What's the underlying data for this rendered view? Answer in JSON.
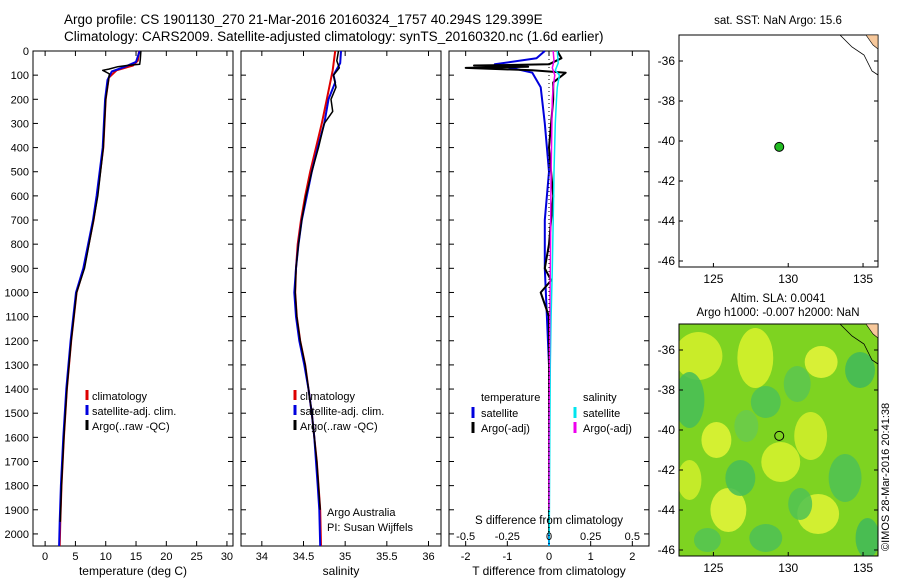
{
  "header": {
    "line1": "Argo profile: CS 1901130_270 21-Mar-2016 20160324_1757 40.294S 129.399E",
    "line2": "Climatology: CARS2009. Satellite-adjusted climatology: synTS_20160320.nc (1.6d earlier)"
  },
  "watermark": "©IMOS 28-Mar-2016 20:41:38",
  "colors": {
    "climatology": "#dd0000",
    "satellite": "#0000dd",
    "argo": "#000000",
    "sat_salinity": "#00e5ee",
    "argo_adj_salinity": "#ee00ee"
  },
  "chart_data": [
    {
      "id": "temperature",
      "type": "line",
      "xlabel": "temperature (deg C)",
      "xlim": [
        -2,
        31
      ],
      "ylim": [
        2050,
        0
      ],
      "x_ticks": [
        0,
        5,
        10,
        15,
        20,
        25,
        30
      ],
      "x_tick_labels": [
        "0",
        "5",
        "10",
        "15",
        "20",
        "25",
        "30"
      ],
      "y_ticks": [
        0,
        100,
        200,
        300,
        400,
        500,
        600,
        700,
        800,
        900,
        1000,
        1100,
        1200,
        1300,
        1400,
        1500,
        1600,
        1700,
        1800,
        1900,
        2000
      ],
      "legend": [
        "climatology",
        "satellite-adj. clim.",
        "Argo(..raw -QC)"
      ],
      "series": [
        {
          "name": "climatology",
          "color": "#dd0000",
          "width": 2,
          "points": [
            [
              15.5,
              0
            ],
            [
              15.3,
              40
            ],
            [
              14.5,
              60
            ],
            [
              11.8,
              80
            ],
            [
              10.5,
              110
            ],
            [
              10.0,
              200
            ],
            [
              9.6,
              400
            ],
            [
              8.6,
              600
            ],
            [
              8.0,
              700
            ],
            [
              6.4,
              900
            ],
            [
              5.2,
              1000
            ],
            [
              4.3,
              1200
            ],
            [
              3.6,
              1400
            ],
            [
              3.1,
              1600
            ],
            [
              2.7,
              1800
            ],
            [
              2.5,
              1950
            ],
            [
              2.4,
              2050
            ]
          ]
        },
        {
          "name": "satellite-adj. clim.",
          "color": "#0000dd",
          "width": 2,
          "points": [
            [
              15.6,
              0
            ],
            [
              15.0,
              45
            ],
            [
              13.2,
              65
            ],
            [
              11.0,
              85
            ],
            [
              10.3,
              120
            ],
            [
              9.9,
              200
            ],
            [
              9.5,
              400
            ],
            [
              8.5,
              600
            ],
            [
              7.9,
              700
            ],
            [
              6.3,
              900
            ],
            [
              5.1,
              1000
            ],
            [
              4.2,
              1200
            ],
            [
              3.5,
              1400
            ],
            [
              3.0,
              1600
            ],
            [
              2.6,
              1800
            ],
            [
              2.4,
              1950
            ],
            [
              2.3,
              2050
            ]
          ]
        },
        {
          "name": "Argo(..raw -QC)",
          "color": "#000000",
          "width": 1.5,
          "points": [
            [
              15.8,
              0
            ],
            [
              15.7,
              35
            ],
            [
              15.6,
              55
            ],
            [
              13.5,
              60
            ],
            [
              12.0,
              65
            ],
            [
              10.5,
              75
            ],
            [
              9.5,
              80
            ],
            [
              10.6,
              95
            ],
            [
              10.4,
              130
            ],
            [
              10.0,
              200
            ],
            [
              9.6,
              400
            ],
            [
              8.7,
              600
            ],
            [
              8.0,
              700
            ],
            [
              6.5,
              900
            ],
            [
              5.2,
              1000
            ],
            [
              4.3,
              1200
            ],
            [
              3.6,
              1400
            ],
            [
              3.1,
              1600
            ],
            [
              2.7,
              1800
            ],
            [
              2.5,
              1950
            ]
          ]
        }
      ]
    },
    {
      "id": "salinity",
      "type": "line",
      "xlabel": "salinity",
      "xlim": [
        33.75,
        36.15
      ],
      "ylim": [
        2050,
        0
      ],
      "x_ticks": [
        34,
        34.5,
        35,
        35.5,
        36
      ],
      "x_tick_labels": [
        "34",
        "34.5",
        "35",
        "35.5",
        "36"
      ],
      "legend": [
        "climatology",
        "satellite-adj. clim.",
        "Argo(..raw -QC)"
      ],
      "annotation": [
        "Argo Australia",
        "PI: Susan Wijffels"
      ],
      "series": [
        {
          "name": "climatology",
          "color": "#dd0000",
          "width": 2,
          "points": [
            [
              34.88,
              0
            ],
            [
              34.85,
              80
            ],
            [
              34.78,
              200
            ],
            [
              34.72,
              300
            ],
            [
              34.65,
              400
            ],
            [
              34.58,
              500
            ],
            [
              34.52,
              600
            ],
            [
              34.47,
              700
            ],
            [
              34.43,
              800
            ],
            [
              34.41,
              900
            ],
            [
              34.4,
              1000
            ],
            [
              34.42,
              1100
            ],
            [
              34.46,
              1200
            ],
            [
              34.52,
              1300
            ],
            [
              34.56,
              1400
            ],
            [
              34.6,
              1500
            ],
            [
              34.63,
              1600
            ],
            [
              34.66,
              1700
            ],
            [
              34.68,
              1800
            ],
            [
              34.7,
              1900
            ],
            [
              34.71,
              2050
            ]
          ]
        },
        {
          "name": "satellite-adj. clim.",
          "color": "#0000dd",
          "width": 2,
          "points": [
            [
              34.95,
              0
            ],
            [
              34.94,
              50
            ],
            [
              34.86,
              100
            ],
            [
              34.88,
              130
            ],
            [
              34.8,
              200
            ],
            [
              34.75,
              300
            ],
            [
              34.67,
              400
            ],
            [
              34.6,
              500
            ],
            [
              34.54,
              600
            ],
            [
              34.48,
              700
            ],
            [
              34.44,
              800
            ],
            [
              34.41,
              900
            ],
            [
              34.39,
              1000
            ],
            [
              34.41,
              1100
            ],
            [
              34.45,
              1200
            ],
            [
              34.51,
              1300
            ],
            [
              34.56,
              1400
            ],
            [
              34.6,
              1500
            ],
            [
              34.63,
              1600
            ],
            [
              34.65,
              1700
            ],
            [
              34.67,
              1800
            ],
            [
              34.69,
              1900
            ],
            [
              34.7,
              2050
            ]
          ]
        },
        {
          "name": "Argo(..raw -QC)",
          "color": "#000000",
          "width": 1.5,
          "points": [
            [
              34.92,
              0
            ],
            [
              34.9,
              40
            ],
            [
              34.93,
              70
            ],
            [
              34.86,
              100
            ],
            [
              34.89,
              150
            ],
            [
              34.83,
              200
            ],
            [
              34.85,
              250
            ],
            [
              34.75,
              300
            ],
            [
              34.68,
              400
            ],
            [
              34.6,
              500
            ],
            [
              34.53,
              600
            ],
            [
              34.48,
              700
            ],
            [
              34.44,
              800
            ],
            [
              34.41,
              900
            ],
            [
              34.4,
              1000
            ],
            [
              34.42,
              1100
            ],
            [
              34.46,
              1200
            ],
            [
              34.52,
              1300
            ],
            [
              34.56,
              1400
            ],
            [
              34.6,
              1500
            ],
            [
              34.63,
              1600
            ],
            [
              34.66,
              1700
            ],
            [
              34.68,
              1800
            ],
            [
              34.7,
              1900
            ]
          ]
        }
      ]
    },
    {
      "id": "difference",
      "type": "line",
      "xlabel": "T difference from climatology",
      "top_label": "S difference from climatology",
      "xlim": [
        -2.4,
        2.4
      ],
      "ylim": [
        2050,
        0
      ],
      "x_ticks": [
        -2,
        -1,
        0,
        1,
        2
      ],
      "x_tick_labels": [
        "-2",
        "-1",
        "0",
        "1",
        "2"
      ],
      "s_ticks": [
        -0.5,
        -0.25,
        0,
        0.25,
        0.5
      ],
      "s_tick_labels": [
        "-0.5",
        "-0.25",
        "0",
        "0.25",
        "0.5"
      ],
      "legend_headers": [
        "temperature",
        "salinity"
      ],
      "legend": [
        "satellite",
        "Argo(-adj)",
        "satellite",
        "Argo(-adj)"
      ],
      "series": [
        {
          "name": "temperature satellite",
          "color": "#0000dd",
          "width": 2,
          "points": [
            [
              -0.1,
              0
            ],
            [
              -0.3,
              30
            ],
            [
              -1.3,
              55
            ],
            [
              -0.9,
              70
            ],
            [
              -0.4,
              90
            ],
            [
              -0.2,
              150
            ],
            [
              -0.1,
              300
            ],
            [
              0.0,
              500
            ],
            [
              -0.1,
              700
            ],
            [
              -0.1,
              900
            ],
            [
              -0.05,
              1100
            ],
            [
              0.0,
              1300
            ],
            [
              0.0,
              1600
            ],
            [
              0.0,
              1900
            ],
            [
              0.0,
              2050
            ]
          ]
        },
        {
          "name": "temperature Argo(-adj)",
          "color": "#000000",
          "width": 2,
          "points": [
            [
              0.2,
              0
            ],
            [
              0.3,
              30
            ],
            [
              0.0,
              55
            ],
            [
              -1.8,
              60
            ],
            [
              -0.5,
              65
            ],
            [
              -2.0,
              70
            ],
            [
              -0.4,
              80
            ],
            [
              0.4,
              90
            ],
            [
              0.1,
              130
            ],
            [
              0.1,
              200
            ],
            [
              0.0,
              400
            ],
            [
              0.1,
              600
            ],
            [
              0.0,
              800
            ],
            [
              -0.1,
              900
            ],
            [
              0.05,
              950
            ],
            [
              -0.2,
              1000
            ],
            [
              -0.1,
              1050
            ],
            [
              0.0,
              1100
            ],
            [
              0.0,
              1300
            ],
            [
              0.0,
              1600
            ],
            [
              0.0,
              1900
            ],
            [
              0.0,
              2000
            ]
          ]
        },
        {
          "name": "salinity satellite",
          "color": "#00e5ee",
          "width": 1.5,
          "points": [
            [
              0.2,
              0
            ],
            [
              0.22,
              50
            ],
            [
              0.15,
              80
            ],
            [
              0.25,
              100
            ],
            [
              0.2,
              150
            ],
            [
              0.18,
              200
            ],
            [
              0.15,
              300
            ],
            [
              0.12,
              500
            ],
            [
              0.1,
              700
            ],
            [
              0.08,
              900
            ],
            [
              0.05,
              1100
            ],
            [
              0.03,
              1300
            ],
            [
              0.02,
              1600
            ],
            [
              0.01,
              1900
            ],
            [
              0.0,
              2050
            ]
          ]
        },
        {
          "name": "salinity Argo(-adj)",
          "color": "#ee00ee",
          "width": 1.5,
          "points": [
            [
              0.1,
              0
            ],
            [
              0.12,
              40
            ],
            [
              0.08,
              70
            ],
            [
              0.14,
              100
            ],
            [
              0.1,
              150
            ],
            [
              0.08,
              200
            ],
            [
              0.07,
              300
            ],
            [
              0.05,
              500
            ],
            [
              0.04,
              700
            ],
            [
              0.03,
              900
            ],
            [
              0.02,
              1100
            ],
            [
              0.01,
              1300
            ],
            [
              0.0,
              1600
            ],
            [
              0.0,
              1900
            ]
          ]
        }
      ]
    },
    {
      "id": "sst_map",
      "type": "scatter",
      "title": "sat. SST: NaN Argo: 15.6",
      "xlim": [
        122.7,
        136.0
      ],
      "ylim": [
        -46.3,
        -34.7
      ],
      "x_ticks": [
        125,
        130,
        135
      ],
      "x_tick_labels": [
        "125",
        "130",
        "135"
      ],
      "y_ticks": [
        -36,
        -38,
        -40,
        -42,
        -44,
        -46
      ],
      "y_tick_labels": [
        "-36",
        "-38",
        "-40",
        "-42",
        "-44",
        "-46"
      ],
      "point": {
        "lon": 129.399,
        "lat": -40.294,
        "color": "#22bb22"
      }
    },
    {
      "id": "sla_map",
      "type": "heatmap",
      "title_line1": "Altim. SLA: 0.0041",
      "title_line2": "Argo h1000: -0.007 h2000: NaN",
      "xlim": [
        122.7,
        136.0
      ],
      "ylim": [
        -46.3,
        -34.7
      ],
      "x_ticks": [
        125,
        130,
        135
      ],
      "x_tick_labels": [
        "125",
        "130",
        "135"
      ],
      "y_ticks": [
        -36,
        -38,
        -40,
        -42,
        -44,
        -46
      ],
      "y_tick_labels": [
        "-36",
        "-38",
        "-40",
        "-42",
        "-44",
        "-46"
      ],
      "point": {
        "lon": 129.399,
        "lat": -40.294
      }
    }
  ]
}
